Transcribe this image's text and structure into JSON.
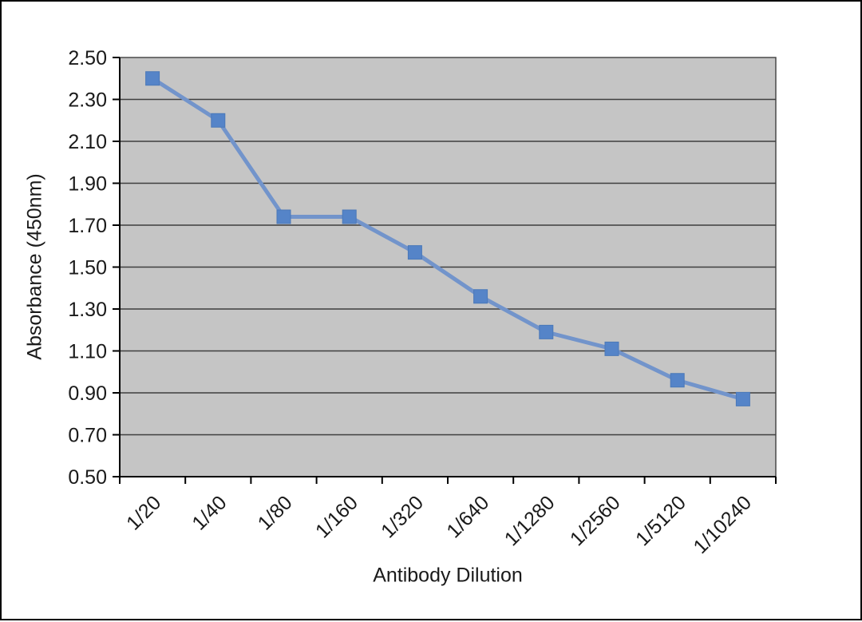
{
  "chart_data": {
    "type": "line",
    "title": "",
    "categories": [
      "1/20",
      "1/40",
      "1/80",
      "1/160",
      "1/320",
      "1/640",
      "1/1280",
      "1/2560",
      "1/5120",
      "1/10240"
    ],
    "values": [
      2.4,
      2.2,
      1.74,
      1.74,
      1.57,
      1.36,
      1.19,
      1.11,
      0.96,
      0.87
    ],
    "series_count": 1,
    "xlabel": "Antibody Dilution",
    "ylabel": "Absorbance (450nm)",
    "ylim": [
      0.5,
      2.5
    ],
    "ytick_step": 0.2,
    "ytick_labels": [
      "0.50",
      "0.70",
      "0.90",
      "1.10",
      "1.30",
      "1.50",
      "1.70",
      "1.90",
      "2.10",
      "2.30",
      "2.50"
    ],
    "x_label_rotation": -45,
    "grid": "horizontal",
    "legend": "none",
    "marker_shape": "square"
  },
  "colors": {
    "background": "#ffffff",
    "outer_border": "#000000",
    "plot_bg": "#c5c5c5",
    "gridline": "#3f3f3f",
    "axis": "#000000",
    "line": "#7294cb",
    "marker": "#5584c8",
    "marker_edge": "#4a78b8",
    "text": "#1a1a1a"
  }
}
